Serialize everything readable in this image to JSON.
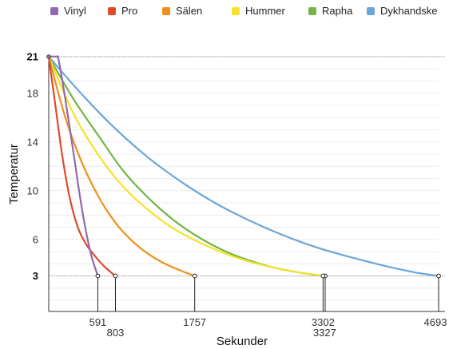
{
  "chart_data": {
    "type": "line",
    "xlabel": "Sekunder",
    "ylabel": "Temperatur",
    "xlim": [
      0,
      4693
    ],
    "ylim": [
      0,
      21
    ],
    "y_ticks": [
      3,
      6,
      10,
      14,
      18,
      21
    ],
    "y_ticks_bold": [
      3,
      21
    ],
    "x_end_labels": [
      {
        "text": "591",
        "value": 591
      },
      {
        "text": "803",
        "value": 803
      },
      {
        "text": "1757",
        "value": 1757
      },
      {
        "text": "3302",
        "value": 3302
      },
      {
        "text": "3327",
        "value": 3327
      },
      {
        "text": "4693",
        "value": 4693
      }
    ],
    "reference_lines": [
      21,
      3
    ],
    "legend_position": "top",
    "series": [
      {
        "name": "Vinyl",
        "color": "#9268b0",
        "end_x": 591,
        "points": [
          [
            0,
            21
          ],
          [
            90,
            21
          ],
          [
            120,
            20.7
          ],
          [
            200,
            17.5
          ],
          [
            300,
            13
          ],
          [
            400,
            8.5
          ],
          [
            500,
            5
          ],
          [
            591,
            3
          ]
        ]
      },
      {
        "name": "Pro",
        "color": "#e04a2a",
        "end_x": 803,
        "points": [
          [
            0,
            21
          ],
          [
            80,
            17
          ],
          [
            160,
            13
          ],
          [
            250,
            9.5
          ],
          [
            350,
            7
          ],
          [
            450,
            5.6
          ],
          [
            560,
            4.6
          ],
          [
            680,
            3.7
          ],
          [
            803,
            3
          ]
        ]
      },
      {
        "name": "Sälen",
        "color": "#f0901a",
        "end_x": 1757,
        "points": [
          [
            0,
            21
          ],
          [
            200,
            16
          ],
          [
            400,
            12.3
          ],
          [
            600,
            9.5
          ],
          [
            800,
            7.4
          ],
          [
            1000,
            5.9
          ],
          [
            1200,
            4.8
          ],
          [
            1400,
            4
          ],
          [
            1600,
            3.4
          ],
          [
            1757,
            3
          ]
        ]
      },
      {
        "name": "Hummer",
        "color": "#f5e22a",
        "end_x": 3327,
        "points": [
          [
            0,
            21
          ],
          [
            300,
            16.3
          ],
          [
            600,
            12.9
          ],
          [
            900,
            10.3
          ],
          [
            1200,
            8.4
          ],
          [
            1500,
            6.9
          ],
          [
            1800,
            5.8
          ],
          [
            2100,
            4.9
          ],
          [
            2400,
            4.2
          ],
          [
            2700,
            3.7
          ],
          [
            3000,
            3.3
          ],
          [
            3327,
            3
          ]
        ]
      },
      {
        "name": "Rapha",
        "color": "#74b444",
        "end_x": 3302,
        "points": [
          [
            0,
            21
          ],
          [
            300,
            17.5
          ],
          [
            600,
            14.5
          ],
          [
            900,
            11.6
          ],
          [
            1200,
            9.4
          ],
          [
            1500,
            7.6
          ],
          [
            1800,
            6.2
          ],
          [
            2100,
            5.1
          ],
          [
            2400,
            4.3
          ],
          [
            2700,
            3.7
          ],
          [
            3000,
            3.3
          ],
          [
            3302,
            3
          ]
        ]
      },
      {
        "name": "Dykhandske",
        "color": "#6aa6da",
        "end_x": 4693,
        "points": [
          [
            0,
            21
          ],
          [
            400,
            17.9
          ],
          [
            800,
            15.1
          ],
          [
            1200,
            12.7
          ],
          [
            1600,
            10.7
          ],
          [
            2000,
            9
          ],
          [
            2400,
            7.6
          ],
          [
            2800,
            6.4
          ],
          [
            3200,
            5.4
          ],
          [
            3600,
            4.6
          ],
          [
            4000,
            3.9
          ],
          [
            4400,
            3.3
          ],
          [
            4693,
            3
          ]
        ]
      }
    ]
  }
}
